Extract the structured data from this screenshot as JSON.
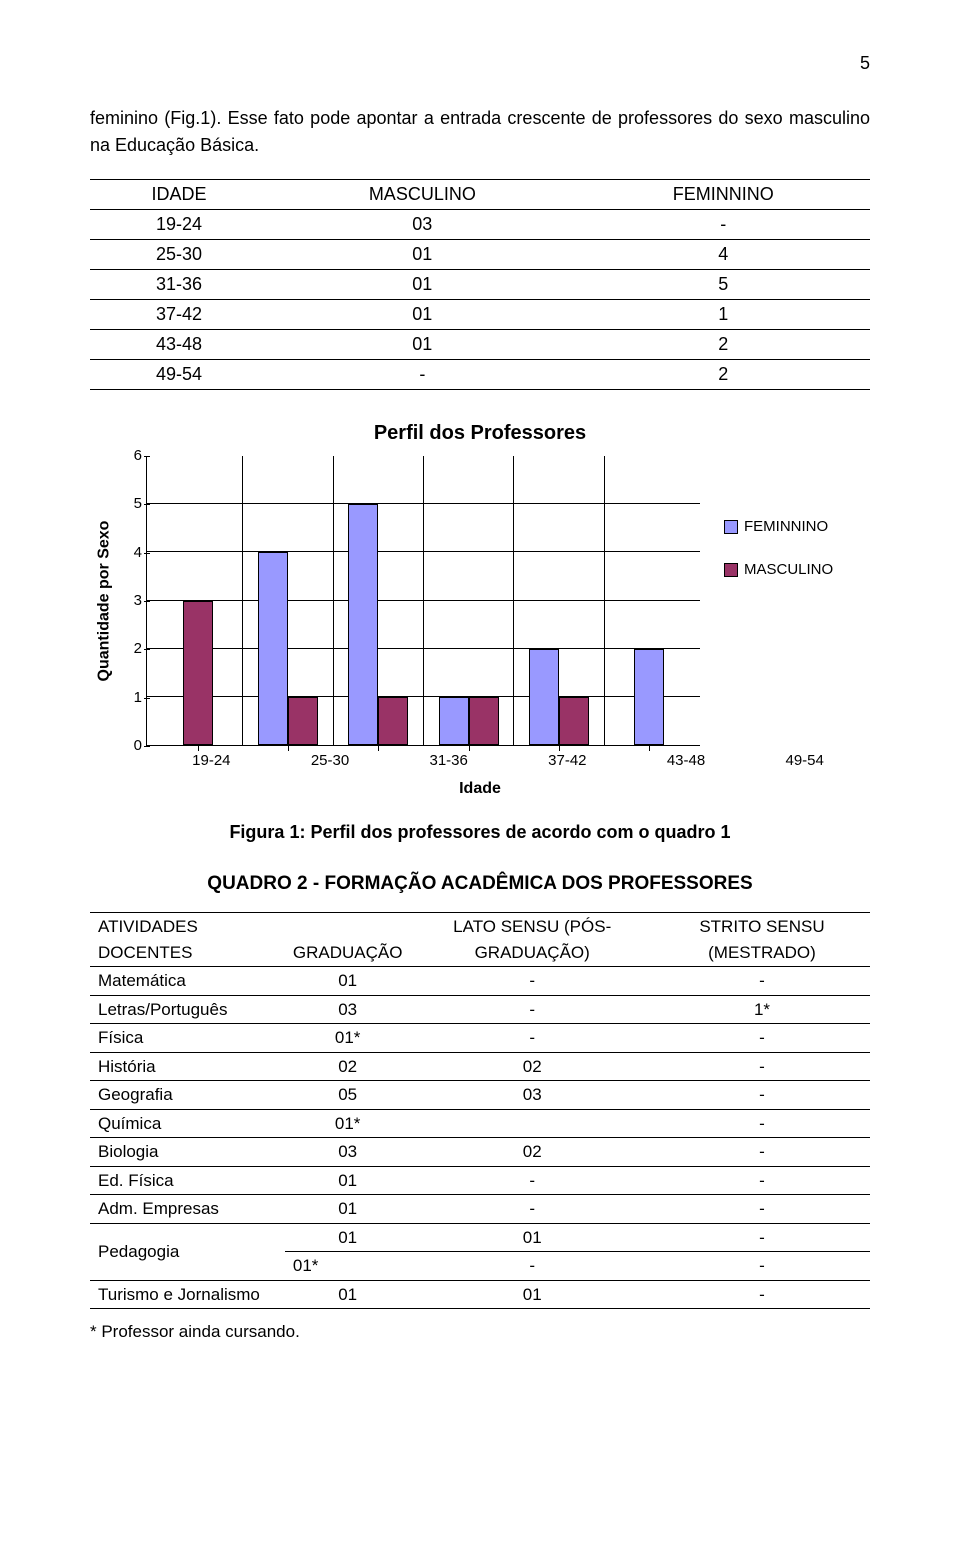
{
  "page_number": "5",
  "paragraph": "feminino (Fig.1). Esse fato pode apontar a entrada crescente de professores do sexo masculino na Educação Básica.",
  "table1": {
    "headers": [
      "IDADE",
      "MASCULINO",
      "FEMINNINO"
    ],
    "rows": [
      [
        "19-24",
        "03",
        "-"
      ],
      [
        "25-30",
        "01",
        "4"
      ],
      [
        "31-36",
        "01",
        "5"
      ],
      [
        "37-42",
        "01",
        "1"
      ],
      [
        "43-48",
        "01",
        "2"
      ],
      [
        "49-54",
        "-",
        "2"
      ]
    ]
  },
  "chart": {
    "title": "Perfil dos Professores",
    "ylabel": "Quantidade por Sexo",
    "xlabel": "Idade",
    "ymax": 6,
    "ytick_step": 1,
    "categories": [
      "19-24",
      "25-30",
      "31-36",
      "37-42",
      "43-48",
      "49-54"
    ],
    "series": [
      {
        "name": "FEMINNINO",
        "color": "#9999ff",
        "values": [
          0,
          4,
          5,
          1,
          2,
          2
        ]
      },
      {
        "name": "MASCULINO",
        "color": "#993366",
        "values": [
          3,
          1,
          1,
          1,
          1,
          0
        ]
      }
    ],
    "background": "#ffffff",
    "grid_color": "#000000",
    "bar_border": "#000000"
  },
  "figure_caption": "Figura 1:  Perfil dos professores de acordo com o quadro 1",
  "section_title": "QUADRO 2 - FORMAÇÃO ACADÊMICA DOS PROFESSORES",
  "table2": {
    "headers": [
      "ATIVIDADES DOCENTES",
      "GRADUAÇÃO",
      "LATO SENSU (PÓS-GRADUAÇÃO)",
      "STRITO SENSU (MESTRADO)"
    ],
    "rows": [
      [
        "Matemática",
        "01",
        "-",
        "-"
      ],
      [
        "Letras/Português",
        "03",
        "-",
        "1*"
      ],
      [
        "Física",
        "01*",
        "-",
        "-"
      ],
      [
        "História",
        "02",
        "02",
        "-"
      ],
      [
        "Geografia",
        "05",
        "03",
        "-"
      ],
      [
        "Química",
        "01*",
        "",
        "-"
      ],
      [
        "Biologia",
        "03",
        "02",
        "-"
      ],
      [
        "Ed. Física",
        "01",
        "-",
        "-"
      ],
      [
        "Adm. Empresas",
        "01",
        "-",
        "-"
      ]
    ],
    "pedagogia": {
      "label": "Pedagogia",
      "r1": [
        "01",
        "01",
        "-"
      ],
      "r2": [
        "01*",
        "-",
        "-"
      ]
    },
    "last": [
      "Turismo e Jornalismo",
      "01",
      "01",
      "-"
    ]
  },
  "footnote": "* Professor ainda cursando."
}
